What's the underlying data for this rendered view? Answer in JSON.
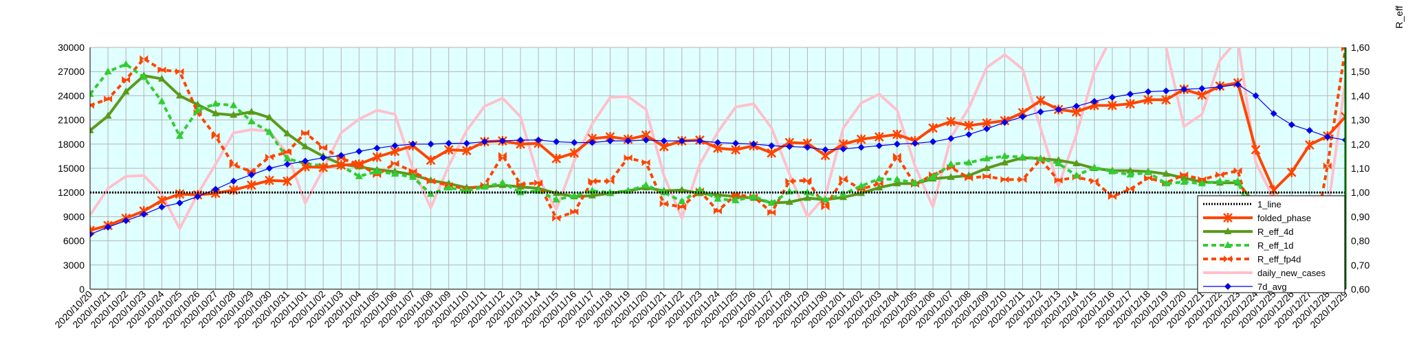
{
  "chart_data": {
    "type": "line",
    "title": "",
    "y2_label": "R_eff",
    "y_left": {
      "min": 0,
      "max": 30000,
      "ticks": [
        0,
        3000,
        6000,
        9000,
        12000,
        15000,
        18000,
        21000,
        24000,
        27000,
        30000
      ]
    },
    "y_right": {
      "min": 0.6,
      "max": 1.6,
      "ticks": [
        "0,60",
        "0,70",
        "0,80",
        "0,90",
        "1,00",
        "1,10",
        "1,20",
        "1,30",
        "1,40",
        "1,50",
        "1,60"
      ]
    },
    "grid": true,
    "legend_position": "bottom-right",
    "x": [
      "2020/10/20",
      "2020/10/21",
      "2020/10/22",
      "2020/10/23",
      "2020/10/24",
      "2020/10/25",
      "2020/10/26",
      "2020/10/27",
      "2020/10/28",
      "2020/10/29",
      "2020/10/30",
      "2020/10/31",
      "2020/11/01",
      "2020/11/02",
      "2020/11/03",
      "2020/11/04",
      "2020/11/05",
      "2020/11/06",
      "2020/11/07",
      "2020/11/08",
      "2020/11/09",
      "2020/11/10",
      "2020/11/11",
      "2020/11/12",
      "2020/11/13",
      "2020/11/14",
      "2020/11/15",
      "2020/11/16",
      "2020/11/17",
      "2020/11/18",
      "2020/11/19",
      "2020/11/20",
      "2020/11/21",
      "2020/11/22",
      "2020/11/23",
      "2020/11/24",
      "2020/11/25",
      "2020/11/26",
      "2020/11/27",
      "2020/11/28",
      "2020/11/29",
      "2020/11/30",
      "2020/12/01",
      "2020/12/02",
      "2020/12/03",
      "2020/12/04",
      "2020/12/05",
      "2020/12/06",
      "2020/12/07",
      "2020/12/08",
      "2020/12/09",
      "2020/12/10",
      "2020/12/11",
      "2020/12/12",
      "2020/12/13",
      "2020/12/14",
      "2020/12/15",
      "2020/12/16",
      "2020/12/17",
      "2020/12/18",
      "2020/12/19",
      "2020/12/20",
      "2020/12/21",
      "2020/12/22",
      "2020/12/23",
      "2020/12/24",
      "2020/12/25",
      "2020/12/26",
      "2020/12/27",
      "2020/12/28",
      "2020/12/29"
    ],
    "series": [
      {
        "name": "1_line",
        "axis": "right",
        "color": "#000000",
        "style": "dotted",
        "marker": "none",
        "values": [
          1,
          1,
          1,
          1,
          1,
          1,
          1,
          1,
          1,
          1,
          1,
          1,
          1,
          1,
          1,
          1,
          1,
          1,
          1,
          1,
          1,
          1,
          1,
          1,
          1,
          1,
          1,
          1,
          1,
          1,
          1,
          1,
          1,
          1,
          1,
          1,
          1,
          1,
          1,
          1,
          1,
          1,
          1,
          1,
          1,
          1,
          1,
          1,
          1,
          1,
          1,
          1,
          1,
          1,
          1,
          1,
          1,
          1,
          1,
          1,
          1,
          1,
          1,
          1,
          1,
          1,
          1,
          1,
          1,
          1,
          1
        ]
      },
      {
        "name": "folded_phase",
        "axis": "left",
        "color": "#ff4500",
        "style": "solid-thick",
        "marker": "star",
        "values": [
          7300,
          7900,
          8800,
          9700,
          11000,
          11800,
          11700,
          11900,
          12300,
          12900,
          13500,
          13400,
          15200,
          15100,
          15400,
          15500,
          16400,
          17100,
          17800,
          16000,
          17300,
          17200,
          18300,
          18400,
          18000,
          18100,
          16200,
          16900,
          18700,
          18900,
          18600,
          19100,
          17700,
          18400,
          18500,
          17500,
          17300,
          17800,
          16900,
          18200,
          18100,
          16600,
          18000,
          18600,
          18900,
          19200,
          18400,
          20000,
          20800,
          20300,
          20600,
          20900,
          21900,
          23400,
          22300,
          22000,
          22800,
          22800,
          23000,
          23500,
          23500,
          24800,
          24100,
          25200,
          25600,
          17300,
          12300,
          14500,
          17900,
          19000,
          21400
        ]
      },
      {
        "name": "R_eff_4d",
        "axis": "left",
        "color": "#5a9a1a",
        "style": "solid-thick",
        "marker": "triangle",
        "values": [
          19700,
          21500,
          24500,
          26500,
          26100,
          24000,
          22900,
          21800,
          21600,
          22000,
          21300,
          19300,
          17700,
          16500,
          15500,
          15200,
          14800,
          14600,
          14200,
          13500,
          13100,
          12600,
          12700,
          12900,
          12700,
          12500,
          11900,
          11500,
          11600,
          11900,
          12200,
          12600,
          12200,
          12300,
          11900,
          11700,
          11500,
          11300,
          10700,
          10800,
          11300,
          11100,
          11400,
          11900,
          12600,
          13100,
          13100,
          13700,
          13900,
          14100,
          15000,
          15700,
          16300,
          16200,
          16000,
          15600,
          15000,
          14700,
          14700,
          14600,
          14300,
          13800,
          13300,
          13200,
          13200,
          10500,
          8500,
          5000,
          5200,
          5500,
          7600
        ]
      },
      {
        "name": "R_eff_1d",
        "axis": "left",
        "color": "#33cc33",
        "style": "dashed-thick",
        "marker": "triangle",
        "values": [
          24200,
          27000,
          27900,
          26300,
          23300,
          19000,
          22200,
          23000,
          22800,
          20800,
          19500,
          16200,
          15600,
          15300,
          15300,
          14000,
          14600,
          14300,
          13900,
          11800,
          12600,
          12200,
          12700,
          13200,
          12000,
          12200,
          11100,
          11600,
          12200,
          12000,
          12200,
          12900,
          12000,
          10900,
          12300,
          11200,
          11000,
          11500,
          10700,
          12100,
          12000,
          11100,
          11800,
          12800,
          13700,
          13600,
          13200,
          13900,
          15500,
          15700,
          16200,
          16500,
          16400,
          16200,
          15600,
          14100,
          15100,
          14600,
          14200,
          14500,
          13100,
          13300,
          13100,
          13400,
          13400,
          7700,
          7700,
          7000,
          9000,
          8300,
          9200
        ]
      },
      {
        "name": "R_eff_fp4d",
        "axis": "left",
        "color": "#ff4500",
        "style": "dashed-thick",
        "marker": "bowtie",
        "values": [
          22800,
          23600,
          26000,
          28600,
          27200,
          27000,
          21900,
          19000,
          15400,
          14600,
          16400,
          17000,
          19400,
          17600,
          16200,
          15500,
          14200,
          15600,
          14600,
          13400,
          12900,
          12400,
          12900,
          16600,
          13000,
          13200,
          8800,
          9600,
          13400,
          13400,
          16300,
          15700,
          10600,
          10200,
          12200,
          9700,
          11700,
          11500,
          9500,
          13400,
          13500,
          10200,
          13700,
          12400,
          13100,
          16500,
          13000,
          14200,
          15100,
          13800,
          14000,
          13600,
          13600,
          16100,
          13500,
          13900,
          13400,
          11500,
          12400,
          13800,
          13200,
          14200,
          13600,
          14200,
          14700,
          7000,
          5700,
          3000,
          3300,
          15300,
          29900
        ]
      },
      {
        "name": "daily_new_cases",
        "axis": "left",
        "color": "#ffc0cb",
        "style": "solid-thick",
        "marker": "none",
        "values": [
          9200,
          12500,
          14000,
          14100,
          11800,
          7500,
          11800,
          15500,
          19400,
          19800,
          19600,
          16800,
          10700,
          14900,
          19400,
          21100,
          22200,
          21700,
          15000,
          10100,
          15300,
          19700,
          22700,
          23700,
          21400,
          13800,
          9900,
          15900,
          20500,
          23800,
          23900,
          22300,
          14100,
          8800,
          15500,
          19500,
          22600,
          23000,
          20000,
          14300,
          9000,
          11600,
          20000,
          23100,
          24200,
          22200,
          15300,
          10200,
          18800,
          22500,
          27500,
          29100,
          27300,
          20000,
          12800,
          19200,
          27000,
          31500,
          31500,
          33000,
          30000,
          20200,
          21700,
          28400,
          31000,
          15700,
          11200,
          11000,
          10600,
          9500,
          26000
        ]
      },
      {
        "name": "7d_avg",
        "axis": "left",
        "color": "#0000ee",
        "style": "solid-thin",
        "marker": "diamond",
        "values": [
          6800,
          7700,
          8500,
          9300,
          10200,
          10700,
          11500,
          12400,
          13400,
          14200,
          15000,
          15500,
          15900,
          16300,
          16600,
          17100,
          17500,
          17800,
          18000,
          18000,
          18100,
          18100,
          18300,
          18400,
          18500,
          18500,
          18300,
          18200,
          18200,
          18400,
          18400,
          18500,
          18400,
          18400,
          18400,
          18200,
          18100,
          18000,
          17800,
          17700,
          17600,
          17300,
          17400,
          17600,
          17800,
          18000,
          18100,
          18300,
          18700,
          19200,
          19900,
          20700,
          21400,
          22000,
          22300,
          22700,
          23300,
          23800,
          24200,
          24500,
          24600,
          24800,
          24900,
          25100,
          25400,
          24000,
          21800,
          20400,
          19700,
          18900,
          18500
        ]
      }
    ]
  },
  "legend": {
    "items": [
      {
        "label": "1_line",
        "color": "#000000",
        "style": "dotted",
        "marker": "none"
      },
      {
        "label": "folded_phase",
        "color": "#ff4500",
        "style": "solid-thick",
        "marker": "star"
      },
      {
        "label": "R_eff_4d",
        "color": "#5a9a1a",
        "style": "solid-thick",
        "marker": "triangle"
      },
      {
        "label": "R_eff_1d",
        "color": "#33cc33",
        "style": "dashed-thick",
        "marker": "triangle"
      },
      {
        "label": "R_eff_fp4d",
        "color": "#ff4500",
        "style": "dashed-thick",
        "marker": "bowtie"
      },
      {
        "label": "daily_new_cases",
        "color": "#ffc0cb",
        "style": "solid-thick",
        "marker": "none"
      },
      {
        "label": "7d_avg",
        "color": "#0000ee",
        "style": "solid-thin",
        "marker": "diamond"
      }
    ]
  },
  "colors": {
    "plot_background": "#e0ffff",
    "grid": "#b4b4b4",
    "right_axis": "#006400"
  }
}
